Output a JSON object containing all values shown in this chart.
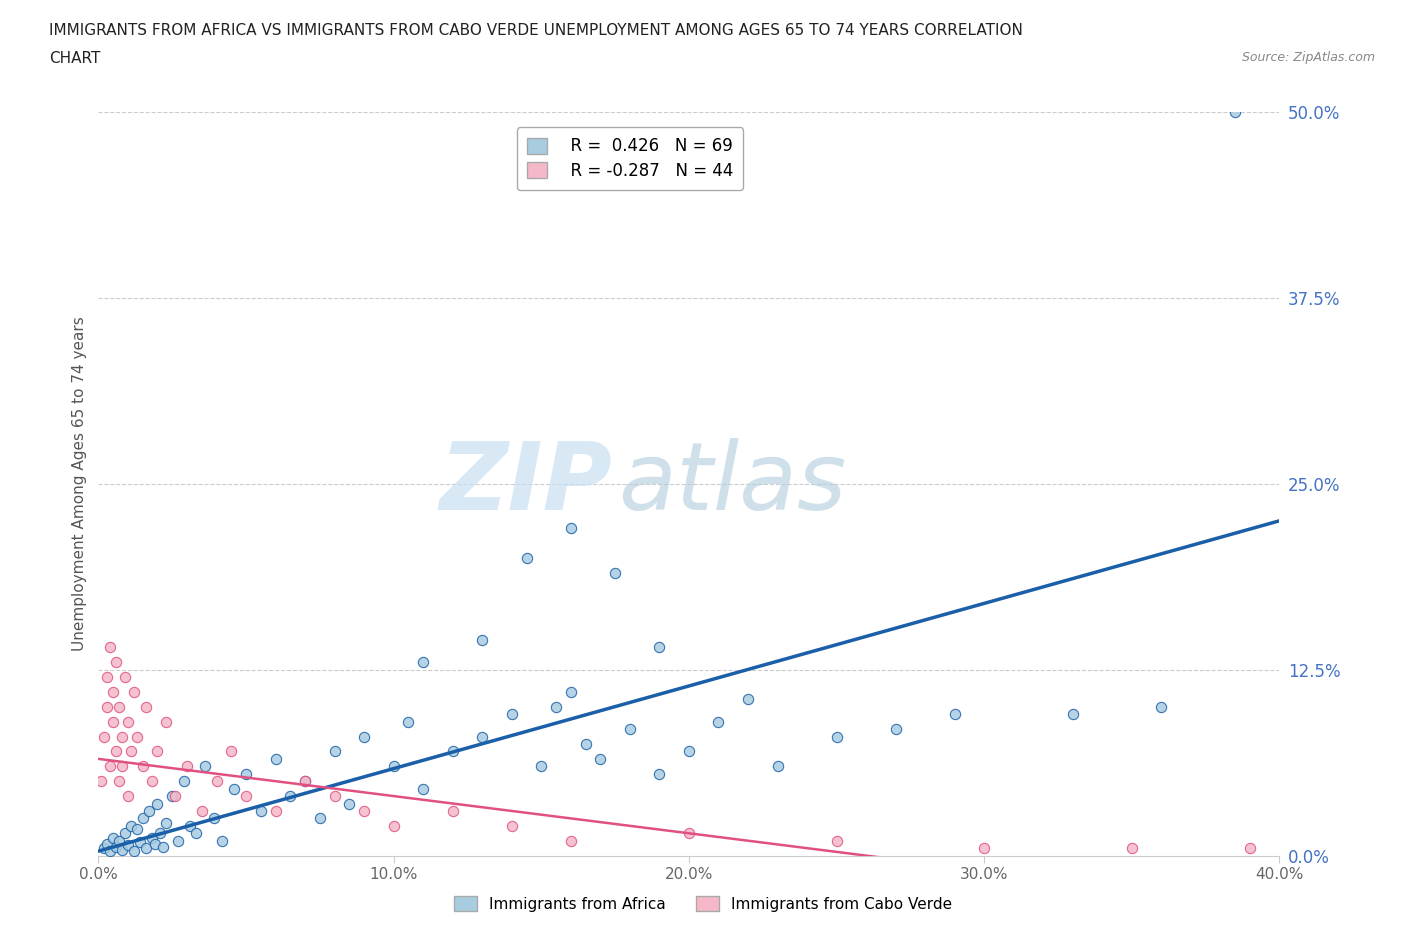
{
  "title_line1": "IMMIGRANTS FROM AFRICA VS IMMIGRANTS FROM CABO VERDE UNEMPLOYMENT AMONG AGES 65 TO 74 YEARS CORRELATION",
  "title_line2": "CHART",
  "source_text": "Source: ZipAtlas.com",
  "ylabel": "Unemployment Among Ages 65 to 74 years",
  "xlim": [
    0.0,
    0.4
  ],
  "ylim": [
    0.0,
    0.5
  ],
  "xtick_labels": [
    "0.0%",
    "10.0%",
    "20.0%",
    "30.0%",
    "40.0%"
  ],
  "xtick_values": [
    0.0,
    0.1,
    0.2,
    0.3,
    0.4
  ],
  "ytick_labels": [
    "0.0%",
    "12.5%",
    "25.0%",
    "37.5%",
    "50.0%"
  ],
  "ytick_values": [
    0.0,
    0.125,
    0.25,
    0.375,
    0.5
  ],
  "watermark_zip": "ZIP",
  "watermark_atlas": "atlas",
  "legend_r1": "R =  0.426",
  "legend_n1": "N = 69",
  "legend_r2": "R = -0.287",
  "legend_n2": "N = 44",
  "legend_label1": "Immigrants from Africa",
  "legend_label2": "Immigrants from Cabo Verde",
  "color_africa": "#a8cce0",
  "color_caboverde": "#f4b8c8",
  "color_africa_line": "#1a5fa8",
  "color_caboverde_line": "#e05080",
  "africa_R": 0.426,
  "africa_N": 69,
  "caboverde_R": -0.287,
  "caboverde_N": 44,
  "africa_x": [
    0.002,
    0.003,
    0.004,
    0.005,
    0.006,
    0.007,
    0.008,
    0.009,
    0.01,
    0.011,
    0.012,
    0.013,
    0.014,
    0.015,
    0.016,
    0.017,
    0.018,
    0.019,
    0.02,
    0.021,
    0.022,
    0.023,
    0.025,
    0.027,
    0.029,
    0.031,
    0.033,
    0.036,
    0.039,
    0.042,
    0.046,
    0.05,
    0.055,
    0.06,
    0.065,
    0.07,
    0.075,
    0.08,
    0.085,
    0.09,
    0.1,
    0.105,
    0.11,
    0.12,
    0.13,
    0.14,
    0.15,
    0.155,
    0.16,
    0.165,
    0.17,
    0.18,
    0.19,
    0.2,
    0.21,
    0.22,
    0.23,
    0.25,
    0.27,
    0.29,
    0.11,
    0.13,
    0.145,
    0.16,
    0.175,
    0.19,
    0.33,
    0.36,
    0.385
  ],
  "africa_y": [
    0.005,
    0.008,
    0.003,
    0.012,
    0.006,
    0.01,
    0.004,
    0.015,
    0.007,
    0.02,
    0.003,
    0.018,
    0.009,
    0.025,
    0.005,
    0.03,
    0.012,
    0.008,
    0.035,
    0.015,
    0.006,
    0.022,
    0.04,
    0.01,
    0.05,
    0.02,
    0.015,
    0.06,
    0.025,
    0.01,
    0.045,
    0.055,
    0.03,
    0.065,
    0.04,
    0.05,
    0.025,
    0.07,
    0.035,
    0.08,
    0.06,
    0.09,
    0.045,
    0.07,
    0.08,
    0.095,
    0.06,
    0.1,
    0.11,
    0.075,
    0.065,
    0.085,
    0.055,
    0.07,
    0.09,
    0.105,
    0.06,
    0.08,
    0.085,
    0.095,
    0.13,
    0.145,
    0.2,
    0.22,
    0.19,
    0.14,
    0.095,
    0.1,
    0.5
  ],
  "caboverde_x": [
    0.001,
    0.002,
    0.003,
    0.003,
    0.004,
    0.004,
    0.005,
    0.005,
    0.006,
    0.006,
    0.007,
    0.007,
    0.008,
    0.008,
    0.009,
    0.01,
    0.01,
    0.011,
    0.012,
    0.013,
    0.015,
    0.016,
    0.018,
    0.02,
    0.023,
    0.026,
    0.03,
    0.035,
    0.04,
    0.045,
    0.05,
    0.06,
    0.07,
    0.08,
    0.09,
    0.1,
    0.12,
    0.14,
    0.16,
    0.2,
    0.25,
    0.3,
    0.35,
    0.39
  ],
  "caboverde_y": [
    0.05,
    0.08,
    0.1,
    0.12,
    0.06,
    0.14,
    0.09,
    0.11,
    0.07,
    0.13,
    0.05,
    0.1,
    0.08,
    0.06,
    0.12,
    0.09,
    0.04,
    0.07,
    0.11,
    0.08,
    0.06,
    0.1,
    0.05,
    0.07,
    0.09,
    0.04,
    0.06,
    0.03,
    0.05,
    0.07,
    0.04,
    0.03,
    0.05,
    0.04,
    0.03,
    0.02,
    0.03,
    0.02,
    0.01,
    0.015,
    0.01,
    0.005,
    0.005,
    0.005
  ],
  "af_trend_x0": 0.0,
  "af_trend_y0": 0.003,
  "af_trend_x1": 0.4,
  "af_trend_y1": 0.225,
  "cv_trend_x0": 0.0,
  "cv_trend_y0": 0.065,
  "cv_trend_x1": 0.3,
  "cv_trend_y1": -0.01
}
